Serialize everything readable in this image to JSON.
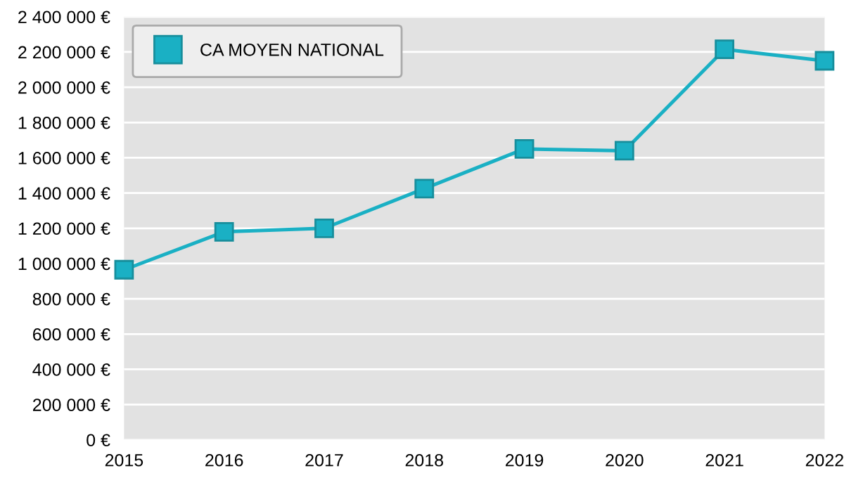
{
  "chart_data": {
    "type": "line",
    "x": [
      2015,
      2016,
      2017,
      2018,
      2019,
      2020,
      2021,
      2022
    ],
    "series": [
      {
        "name": "CA MOYEN NATIONAL",
        "color": "#1ab0c4",
        "values": [
          965000,
          1180000,
          1200000,
          1425000,
          1650000,
          1640000,
          2215000,
          2150000
        ]
      }
    ],
    "xlim": [
      2015,
      2022
    ],
    "xticks": [
      2015,
      2016,
      2017,
      2018,
      2019,
      2020,
      2021,
      2022
    ],
    "ylim": [
      0,
      2400000
    ],
    "yticks": [
      {
        "value": 0,
        "label": "0 €"
      },
      {
        "value": 200000,
        "label": "200 000 €"
      },
      {
        "value": 400000,
        "label": "400 000 €"
      },
      {
        "value": 600000,
        "label": "600 000 €"
      },
      {
        "value": 800000,
        "label": "800 000 €"
      },
      {
        "value": 1000000,
        "label": "1 000 000 €"
      },
      {
        "value": 1200000,
        "label": "1 200 000 €"
      },
      {
        "value": 1400000,
        "label": "1 400 000 €"
      },
      {
        "value": 1600000,
        "label": "1 600 000 €"
      },
      {
        "value": 1800000,
        "label": "1 800 000 €"
      },
      {
        "value": 2000000,
        "label": "2 000 000 €"
      },
      {
        "value": 2200000,
        "label": "2 200 000 €"
      },
      {
        "value": 2400000,
        "label": "2 400 000 €"
      }
    ],
    "grid": "y",
    "legend": "top left",
    "marker": "square",
    "line_style": "solid"
  }
}
